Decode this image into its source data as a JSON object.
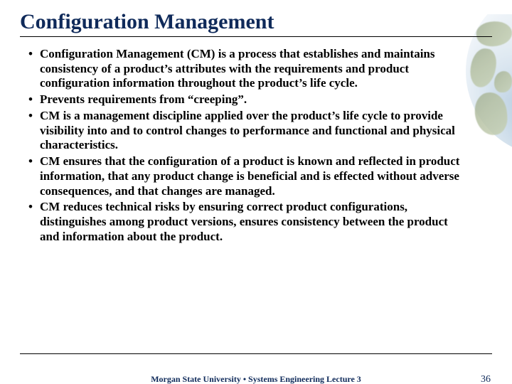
{
  "colors": {
    "title": "#0f2a5a",
    "body_text": "#000000",
    "rule": "#000000",
    "footer_text": "#0f2a5a",
    "background": "#ffffff"
  },
  "typography": {
    "title_fontsize_pt": 22,
    "body_fontsize_pt": 13,
    "footer_fontsize_pt": 9,
    "font_family": "Palatino / Book Antiqua (serif)",
    "body_weight": "bold",
    "title_weight": "bold"
  },
  "slide": {
    "title": "Configuration Management",
    "bullets": [
      "Configuration Management (CM) is a process that establishes and maintains consistency of a product’s attributes with the requirements and product configuration information throughout the product’s life cycle.",
      "Prevents requirements from “creeping”.",
      "CM is a management discipline applied over the product’s life cycle to provide visibility into and to control changes to performance and functional and physical characteristics.",
      "CM ensures that the configuration of a product is known and reflected in product information, that any product change is beneficial and is effected without adverse consequences, and that changes are managed.",
      "CM reduces technical risks by ensuring correct product configurations, distinguishes among product versions, ensures consistency between the product and information about the product."
    ]
  },
  "footer": {
    "center": "Morgan State University • Systems Engineering Lecture 3",
    "page_number": "36"
  }
}
